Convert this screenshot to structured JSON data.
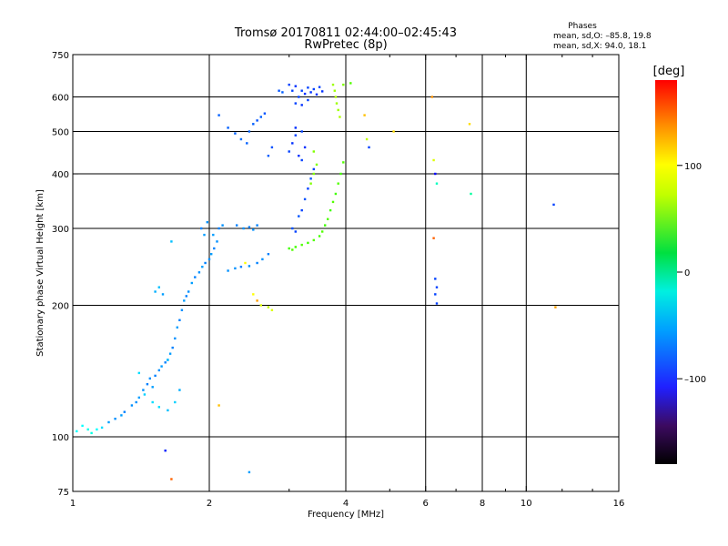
{
  "title_line1": "Tromsø 20170811 02:44:00–02:45:43",
  "title_line2": "RwPretec (8p)",
  "phases": {
    "heading": "Phases",
    "line1": "mean, sd,O: –85.8, 19.8",
    "line2": "mean, sd,X:  94.0, 18.1"
  },
  "colorbar": {
    "label": "[deg]",
    "ticks": [
      "100",
      "0",
      "–100"
    ],
    "tick_values": [
      100,
      0,
      -100
    ],
    "range": [
      -180,
      180
    ]
  },
  "chart_data": {
    "type": "scatter",
    "xlabel": "Frequency [MHz]",
    "ylabel": "Stationary phase Virtual Height [km]",
    "x_scale": "log",
    "y_scale": "log",
    "xlim": [
      1,
      16
    ],
    "ylim": [
      75,
      750
    ],
    "grid": true,
    "x_ticks": [
      "1",
      "2",
      "4",
      "6",
      "8",
      "10",
      "16"
    ],
    "x_tick_values": [
      1,
      2,
      4,
      6,
      8,
      10,
      16
    ],
    "y_ticks": [
      "750",
      "600",
      "500",
      "400",
      "300",
      "200",
      "100",
      "75"
    ],
    "y_tick_values": [
      750,
      600,
      500,
      400,
      300,
      200,
      100,
      75
    ],
    "x_gridlines": [
      2,
      4,
      6,
      8,
      10
    ],
    "y_gridlines": [
      100,
      200,
      300,
      400,
      500,
      600
    ],
    "points": [
      [
        1.02,
        103,
        -60
      ],
      [
        1.05,
        106,
        -60
      ],
      [
        1.08,
        104,
        -55
      ],
      [
        1.1,
        102,
        -50
      ],
      [
        1.13,
        104,
        -60
      ],
      [
        1.16,
        105,
        -70
      ],
      [
        1.2,
        108,
        -90
      ],
      [
        1.24,
        110,
        -95
      ],
      [
        1.28,
        112,
        -90
      ],
      [
        1.3,
        114,
        -100
      ],
      [
        1.35,
        118,
        -95
      ],
      [
        1.38,
        120,
        -95
      ],
      [
        1.4,
        123,
        -90
      ],
      [
        1.43,
        128,
        -95
      ],
      [
        1.46,
        132,
        -100
      ],
      [
        1.48,
        136,
        -95
      ],
      [
        1.5,
        130,
        -90
      ],
      [
        1.52,
        138,
        -100
      ],
      [
        1.55,
        142,
        -95
      ],
      [
        1.57,
        145,
        -90
      ],
      [
        1.6,
        148,
        -100
      ],
      [
        1.62,
        150,
        -95
      ],
      [
        1.64,
        155,
        -90
      ],
      [
        1.66,
        160,
        -100
      ],
      [
        1.68,
        168,
        -95
      ],
      [
        1.7,
        178,
        -90
      ],
      [
        1.72,
        185,
        -100
      ],
      [
        1.74,
        195,
        -95
      ],
      [
        1.76,
        205,
        -90
      ],
      [
        1.78,
        210,
        -100
      ],
      [
        1.8,
        215,
        -95
      ],
      [
        1.83,
        225,
        -90
      ],
      [
        1.86,
        232,
        -100
      ],
      [
        1.9,
        238,
        -95
      ],
      [
        1.93,
        245,
        -90
      ],
      [
        1.96,
        250,
        -100
      ],
      [
        2.0,
        255,
        -95
      ],
      [
        2.02,
        262,
        -90
      ],
      [
        2.05,
        270,
        -100
      ],
      [
        2.08,
        280,
        -95
      ],
      [
        1.95,
        290,
        -90
      ],
      [
        1.92,
        300,
        -100
      ],
      [
        1.98,
        310,
        -95
      ],
      [
        2.04,
        290,
        -90
      ],
      [
        2.1,
        300,
        -100
      ],
      [
        2.14,
        305,
        -95
      ],
      [
        1.52,
        215,
        -85
      ],
      [
        1.55,
        220,
        -80
      ],
      [
        1.58,
        212,
        -90
      ],
      [
        1.65,
        280,
        -80
      ],
      [
        1.4,
        140,
        -70
      ],
      [
        1.44,
        125,
        -75
      ],
      [
        1.5,
        120,
        -70
      ],
      [
        1.55,
        117,
        -70
      ],
      [
        1.62,
        115,
        -80
      ],
      [
        1.68,
        120,
        -75
      ],
      [
        1.72,
        128,
        -85
      ],
      [
        1.62,
        150,
        -80
      ],
      [
        2.2,
        240,
        -95
      ],
      [
        2.28,
        243,
        -95
      ],
      [
        2.35,
        245,
        -100
      ],
      [
        2.45,
        246,
        -95
      ],
      [
        2.55,
        250,
        -100
      ],
      [
        2.62,
        255,
        -95
      ],
      [
        2.7,
        262,
        -100
      ],
      [
        2.3,
        305,
        -100
      ],
      [
        2.38,
        300,
        -95
      ],
      [
        2.45,
        302,
        -100
      ],
      [
        2.5,
        298,
        -95
      ],
      [
        2.55,
        305,
        -100
      ],
      [
        2.1,
        545,
        -110
      ],
      [
        2.2,
        510,
        -110
      ],
      [
        2.28,
        495,
        -110
      ],
      [
        2.35,
        480,
        -105
      ],
      [
        2.42,
        470,
        -110
      ],
      [
        2.45,
        500,
        -110
      ],
      [
        2.5,
        520,
        -110
      ],
      [
        2.55,
        530,
        -115
      ],
      [
        2.6,
        540,
        -110
      ],
      [
        2.65,
        550,
        -115
      ],
      [
        2.7,
        440,
        -110
      ],
      [
        2.75,
        460,
        -115
      ],
      [
        2.85,
        620,
        -115
      ],
      [
        2.9,
        615,
        -110
      ],
      [
        3.0,
        640,
        -120
      ],
      [
        3.05,
        620,
        -120
      ],
      [
        3.1,
        635,
        -125
      ],
      [
        3.15,
        600,
        -120
      ],
      [
        3.2,
        620,
        -120
      ],
      [
        3.25,
        610,
        -125
      ],
      [
        3.3,
        630,
        -120
      ],
      [
        3.35,
        615,
        -125
      ],
      [
        3.4,
        625,
        -120
      ],
      [
        3.45,
        608,
        -125
      ],
      [
        3.5,
        632,
        -120
      ],
      [
        3.55,
        618,
        -125
      ],
      [
        3.1,
        580,
        -120
      ],
      [
        3.2,
        575,
        -125
      ],
      [
        3.3,
        590,
        -120
      ],
      [
        3.0,
        450,
        -120
      ],
      [
        3.05,
        470,
        -125
      ],
      [
        3.1,
        490,
        -120
      ],
      [
        3.15,
        440,
        -125
      ],
      [
        3.2,
        430,
        -120
      ],
      [
        3.25,
        460,
        -125
      ],
      [
        3.1,
        510,
        -125
      ],
      [
        3.2,
        500,
        -120
      ],
      [
        3.15,
        320,
        -115
      ],
      [
        3.2,
        330,
        -120
      ],
      [
        3.25,
        350,
        -115
      ],
      [
        3.3,
        370,
        -120
      ],
      [
        3.35,
        390,
        -115
      ],
      [
        3.4,
        410,
        -120
      ],
      [
        3.05,
        300,
        -115
      ],
      [
        3.1,
        295,
        -120
      ],
      [
        3.0,
        270,
        40
      ],
      [
        3.05,
        268,
        45
      ],
      [
        3.1,
        272,
        40
      ],
      [
        3.2,
        275,
        45
      ],
      [
        3.3,
        278,
        40
      ],
      [
        3.4,
        282,
        45
      ],
      [
        3.5,
        288,
        40
      ],
      [
        3.55,
        295,
        45
      ],
      [
        3.6,
        305,
        40
      ],
      [
        3.65,
        315,
        45
      ],
      [
        3.7,
        330,
        40
      ],
      [
        3.75,
        345,
        45
      ],
      [
        3.8,
        360,
        40
      ],
      [
        3.85,
        380,
        45
      ],
      [
        3.9,
        400,
        40
      ],
      [
        3.95,
        425,
        45
      ],
      [
        3.35,
        380,
        60
      ],
      [
        3.4,
        400,
        60
      ],
      [
        3.45,
        420,
        60
      ],
      [
        3.4,
        450,
        60
      ],
      [
        3.75,
        640,
        70
      ],
      [
        3.78,
        620,
        70
      ],
      [
        3.8,
        600,
        75
      ],
      [
        3.82,
        580,
        70
      ],
      [
        3.85,
        560,
        70
      ],
      [
        3.88,
        540,
        75
      ],
      [
        3.95,
        640,
        60
      ],
      [
        4.1,
        645,
        45
      ],
      [
        4.4,
        545,
        120
      ],
      [
        4.45,
        480,
        80
      ],
      [
        4.5,
        460,
        -120
      ],
      [
        5.1,
        500,
        110
      ],
      [
        6.2,
        600,
        135
      ],
      [
        6.25,
        430,
        90
      ],
      [
        6.3,
        400,
        -140
      ],
      [
        6.35,
        380,
        -40
      ],
      [
        6.25,
        285,
        150
      ],
      [
        6.3,
        230,
        -120
      ],
      [
        6.35,
        220,
        -120
      ],
      [
        6.3,
        212,
        -120
      ],
      [
        6.35,
        202,
        -120
      ],
      [
        7.5,
        520,
        110
      ],
      [
        7.55,
        360,
        -30
      ],
      [
        11.5,
        340,
        -120
      ],
      [
        11.6,
        198,
        130
      ],
      [
        2.4,
        250,
        100
      ],
      [
        2.5,
        212,
        100
      ],
      [
        2.55,
        205,
        130
      ],
      [
        2.6,
        200,
        90
      ],
      [
        2.7,
        198,
        80
      ],
      [
        2.75,
        195,
        90
      ],
      [
        2.1,
        118,
        120
      ],
      [
        2.45,
        83,
        -90
      ],
      [
        1.65,
        80,
        150
      ],
      [
        1.6,
        93,
        -130
      ]
    ]
  }
}
